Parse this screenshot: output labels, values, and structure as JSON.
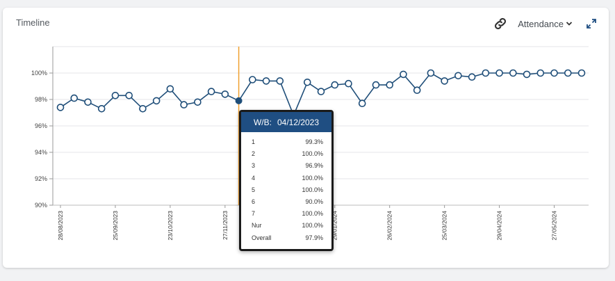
{
  "card": {
    "title": "Timeline"
  },
  "controls": {
    "metric_label": "Attendance",
    "link_icon": "link-icon",
    "chevron_icon": "chevron-down-icon",
    "expand_icon": "expand-icon"
  },
  "colors": {
    "line": "#1f4e79",
    "cursor": "#f0a030",
    "tooltip_header": "#1f4e82",
    "grid": "#e4e6e8"
  },
  "tooltip": {
    "prefix": "W/B:",
    "date": "04/12/2023",
    "rows": [
      {
        "label": "1",
        "value": "99.3%"
      },
      {
        "label": "2",
        "value": "100.0%"
      },
      {
        "label": "3",
        "value": "96.9%"
      },
      {
        "label": "4",
        "value": "100.0%"
      },
      {
        "label": "5",
        "value": "100.0%"
      },
      {
        "label": "6",
        "value": "90.0%"
      },
      {
        "label": "7",
        "value": "100.0%"
      },
      {
        "label": "Nur",
        "value": "100.0%"
      },
      {
        "label": "Overall",
        "value": "97.9%"
      }
    ]
  },
  "chart_data": {
    "type": "line",
    "title": "Timeline",
    "ylim": [
      90,
      102
    ],
    "y_ticks": [
      {
        "value": 90,
        "label": "90%"
      },
      {
        "value": 92,
        "label": "92%"
      },
      {
        "value": 94,
        "label": "94%"
      },
      {
        "value": 96,
        "label": "96%"
      },
      {
        "value": 98,
        "label": "98%"
      },
      {
        "value": 100,
        "label": "100%"
      }
    ],
    "x_tick_labels": [
      {
        "index": 0,
        "label": "28/08/2023"
      },
      {
        "index": 4,
        "label": "25/09/2023"
      },
      {
        "index": 8,
        "label": "23/10/2023"
      },
      {
        "index": 12,
        "label": "27/11/2023"
      },
      {
        "index": 20,
        "label": "29/01/2024"
      },
      {
        "index": 24,
        "label": "26/02/2024"
      },
      {
        "index": 28,
        "label": "25/03/2024"
      },
      {
        "index": 32,
        "label": "29/04/2024"
      },
      {
        "index": 36,
        "label": "27/05/2024"
      }
    ],
    "grid": true,
    "highlight_index": 13,
    "series": [
      {
        "values": [
          97.4,
          98.1,
          97.8,
          97.3,
          98.3,
          98.3,
          97.3,
          97.9,
          98.8,
          97.6,
          97.8,
          98.6,
          98.4,
          97.9,
          99.5,
          99.4,
          99.4,
          96.8,
          99.3,
          98.6,
          99.1,
          99.2,
          97.7,
          99.1,
          99.1,
          99.9,
          98.7,
          100.0,
          99.4,
          99.8,
          99.7,
          100.0,
          100.0,
          100.0,
          99.9,
          100.0,
          100.0,
          100.0,
          100.0
        ]
      }
    ]
  }
}
